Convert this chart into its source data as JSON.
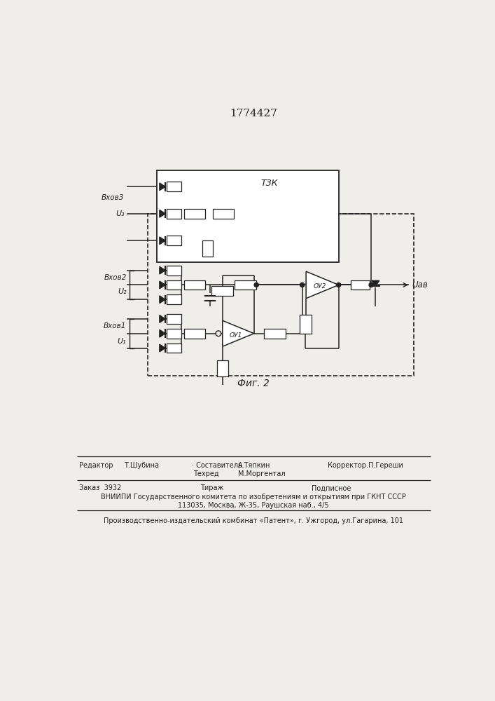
{
  "title": "1774427",
  "fig_label": "Фиг. 2",
  "background_color": "#f0eeeb",
  "text_color": "#1a1a1a",
  "line_color": "#222222",
  "labels": {
    "input3_a": "Вхов3",
    "input3_b": "U₃",
    "input2_a": "Вхов2",
    "input2_b": "U₂",
    "input1_a": "Вхов1",
    "input1_b": "U₁",
    "output": "Uав",
    "tzk": "ТЗК",
    "oy1": "ОУ1",
    "oy2": "ОУ2"
  },
  "footer": {
    "editor_label": "Редактор",
    "editor_name": "Т.Шубина",
    "composer_label": "· Составитель",
    "composer_name": "А.Тяпкин",
    "techred_label": "Техред",
    "techred_name": "М.Моргентал",
    "corrector_label": "Корректор.П.Гереши",
    "order": "Заказ  3932",
    "tirazh": "Тираж",
    "podpisnoe": "Подписное",
    "vniipii": "ВНИИПИ Государственного комитета по изобретениям и открытиям при ГКНТ СССР",
    "address": "113035, Москва, Ж-35, Раушская наб., 4/5",
    "patent": "Производственно-издательский комбинат «Патент», г. Ужгород, ул.Гагарина, 101"
  }
}
